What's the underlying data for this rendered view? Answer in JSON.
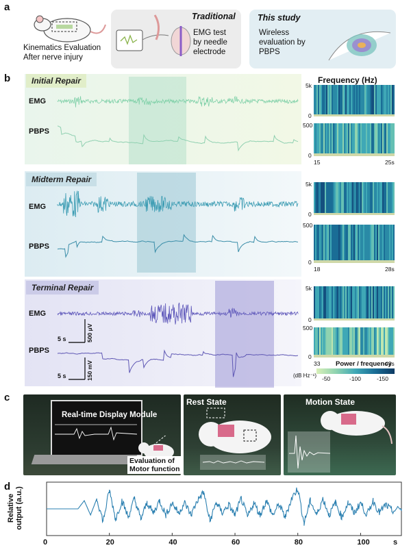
{
  "panel_a": {
    "letter": "a",
    "left_caption_line1": "Kinematics Evaluation",
    "left_caption_line2": "After nerve injury",
    "traditional_title": "Traditional",
    "traditional_text_line1": "EMG test",
    "traditional_text_line2": "by needle",
    "traditional_text_line3": "electrode",
    "study_title": "This study",
    "study_text_line1": "Wireless",
    "study_text_line2": "evaluation by",
    "study_text_line3": "PBPS"
  },
  "panel_b": {
    "letter": "b",
    "frequency_title": "Frequency (Hz)",
    "emg_label": "EMG",
    "pbps_label": "PBPS",
    "sections": [
      {
        "title": "Initial Repair",
        "emg_top": "5k",
        "emg_bottom": "0",
        "pbps_top": "500",
        "pbps_bottom": "0",
        "t_start": "15",
        "t_end": "25s"
      },
      {
        "title": "Midterm Repair",
        "emg_top": "5k",
        "emg_bottom": "0",
        "pbps_top": "500",
        "pbps_bottom": "0",
        "t_start": "18",
        "t_end": "28s"
      },
      {
        "title": "Terminal Repair",
        "emg_top": "5k",
        "emg_bottom": "0",
        "pbps_top": "500",
        "pbps_bottom": "0",
        "t_start": "33",
        "t_end": "43s"
      }
    ],
    "scale_emg_time": "5 s",
    "scale_emg_amp": "500 μV",
    "scale_pbps_time": "5 s",
    "scale_pbps_amp": "150 mV",
    "colorbar_title": "Power / frequency",
    "colorbar_unit": "(dB Hz⁻¹)",
    "colorbar_ticks": [
      "-50",
      "-100",
      "-150"
    ]
  },
  "panel_c": {
    "letter": "c",
    "display_module": "Real-time Display Module",
    "evaluation_line1": "Evaluation of",
    "evaluation_line2": "Motor function",
    "rest_state": "Rest State",
    "motion_state": "Motion State"
  },
  "panel_d": {
    "letter": "d",
    "ylabel_line1": "Relative",
    "ylabel_line2": "output (a.u.)",
    "x_unit": "s",
    "xticks": [
      "0",
      "20",
      "40",
      "60",
      "80",
      "100"
    ]
  },
  "chart_data": {
    "type": "line",
    "title": "",
    "xlabel": "s",
    "ylabel": "Relative output (a.u.)",
    "xlim": [
      0,
      113
    ],
    "x_ticks": [
      0,
      20,
      40,
      60,
      80,
      100
    ],
    "series": [
      {
        "x": [
          0,
          10,
          12,
          14,
          16,
          18,
          20,
          22,
          24,
          26,
          28,
          30,
          32,
          34,
          36,
          38,
          40,
          42,
          44,
          46,
          48,
          50,
          52,
          54,
          56,
          58,
          60,
          62,
          64,
          66,
          68,
          70,
          72,
          74,
          76,
          78,
          80,
          82,
          84,
          86,
          88,
          90,
          92,
          94,
          96,
          98,
          100,
          102,
          104,
          106,
          108,
          110,
          113
        ],
        "y": [
          0,
          0,
          0.4,
          -0.3,
          0.5,
          -0.6,
          0.9,
          -0.5,
          0.4,
          -0.4,
          0.5,
          -0.5,
          0.3,
          -0.2,
          0.4,
          -0.3,
          0.3,
          -0.2,
          0.3,
          -0.3,
          0.4,
          0.8,
          -0.6,
          0.3,
          -0.2,
          0.2,
          -0.3,
          0.5,
          -0.4,
          0.3,
          -0.3,
          0.4,
          -0.3,
          0.2,
          -0.4,
          0.5,
          1.0,
          -0.7,
          0.4,
          -0.3,
          0.5,
          -0.3,
          0.3,
          -0.4,
          0.3,
          -0.2,
          0.3,
          -0.3,
          0.4,
          -0.2,
          0.2,
          -0.1,
          0
        ]
      }
    ]
  }
}
